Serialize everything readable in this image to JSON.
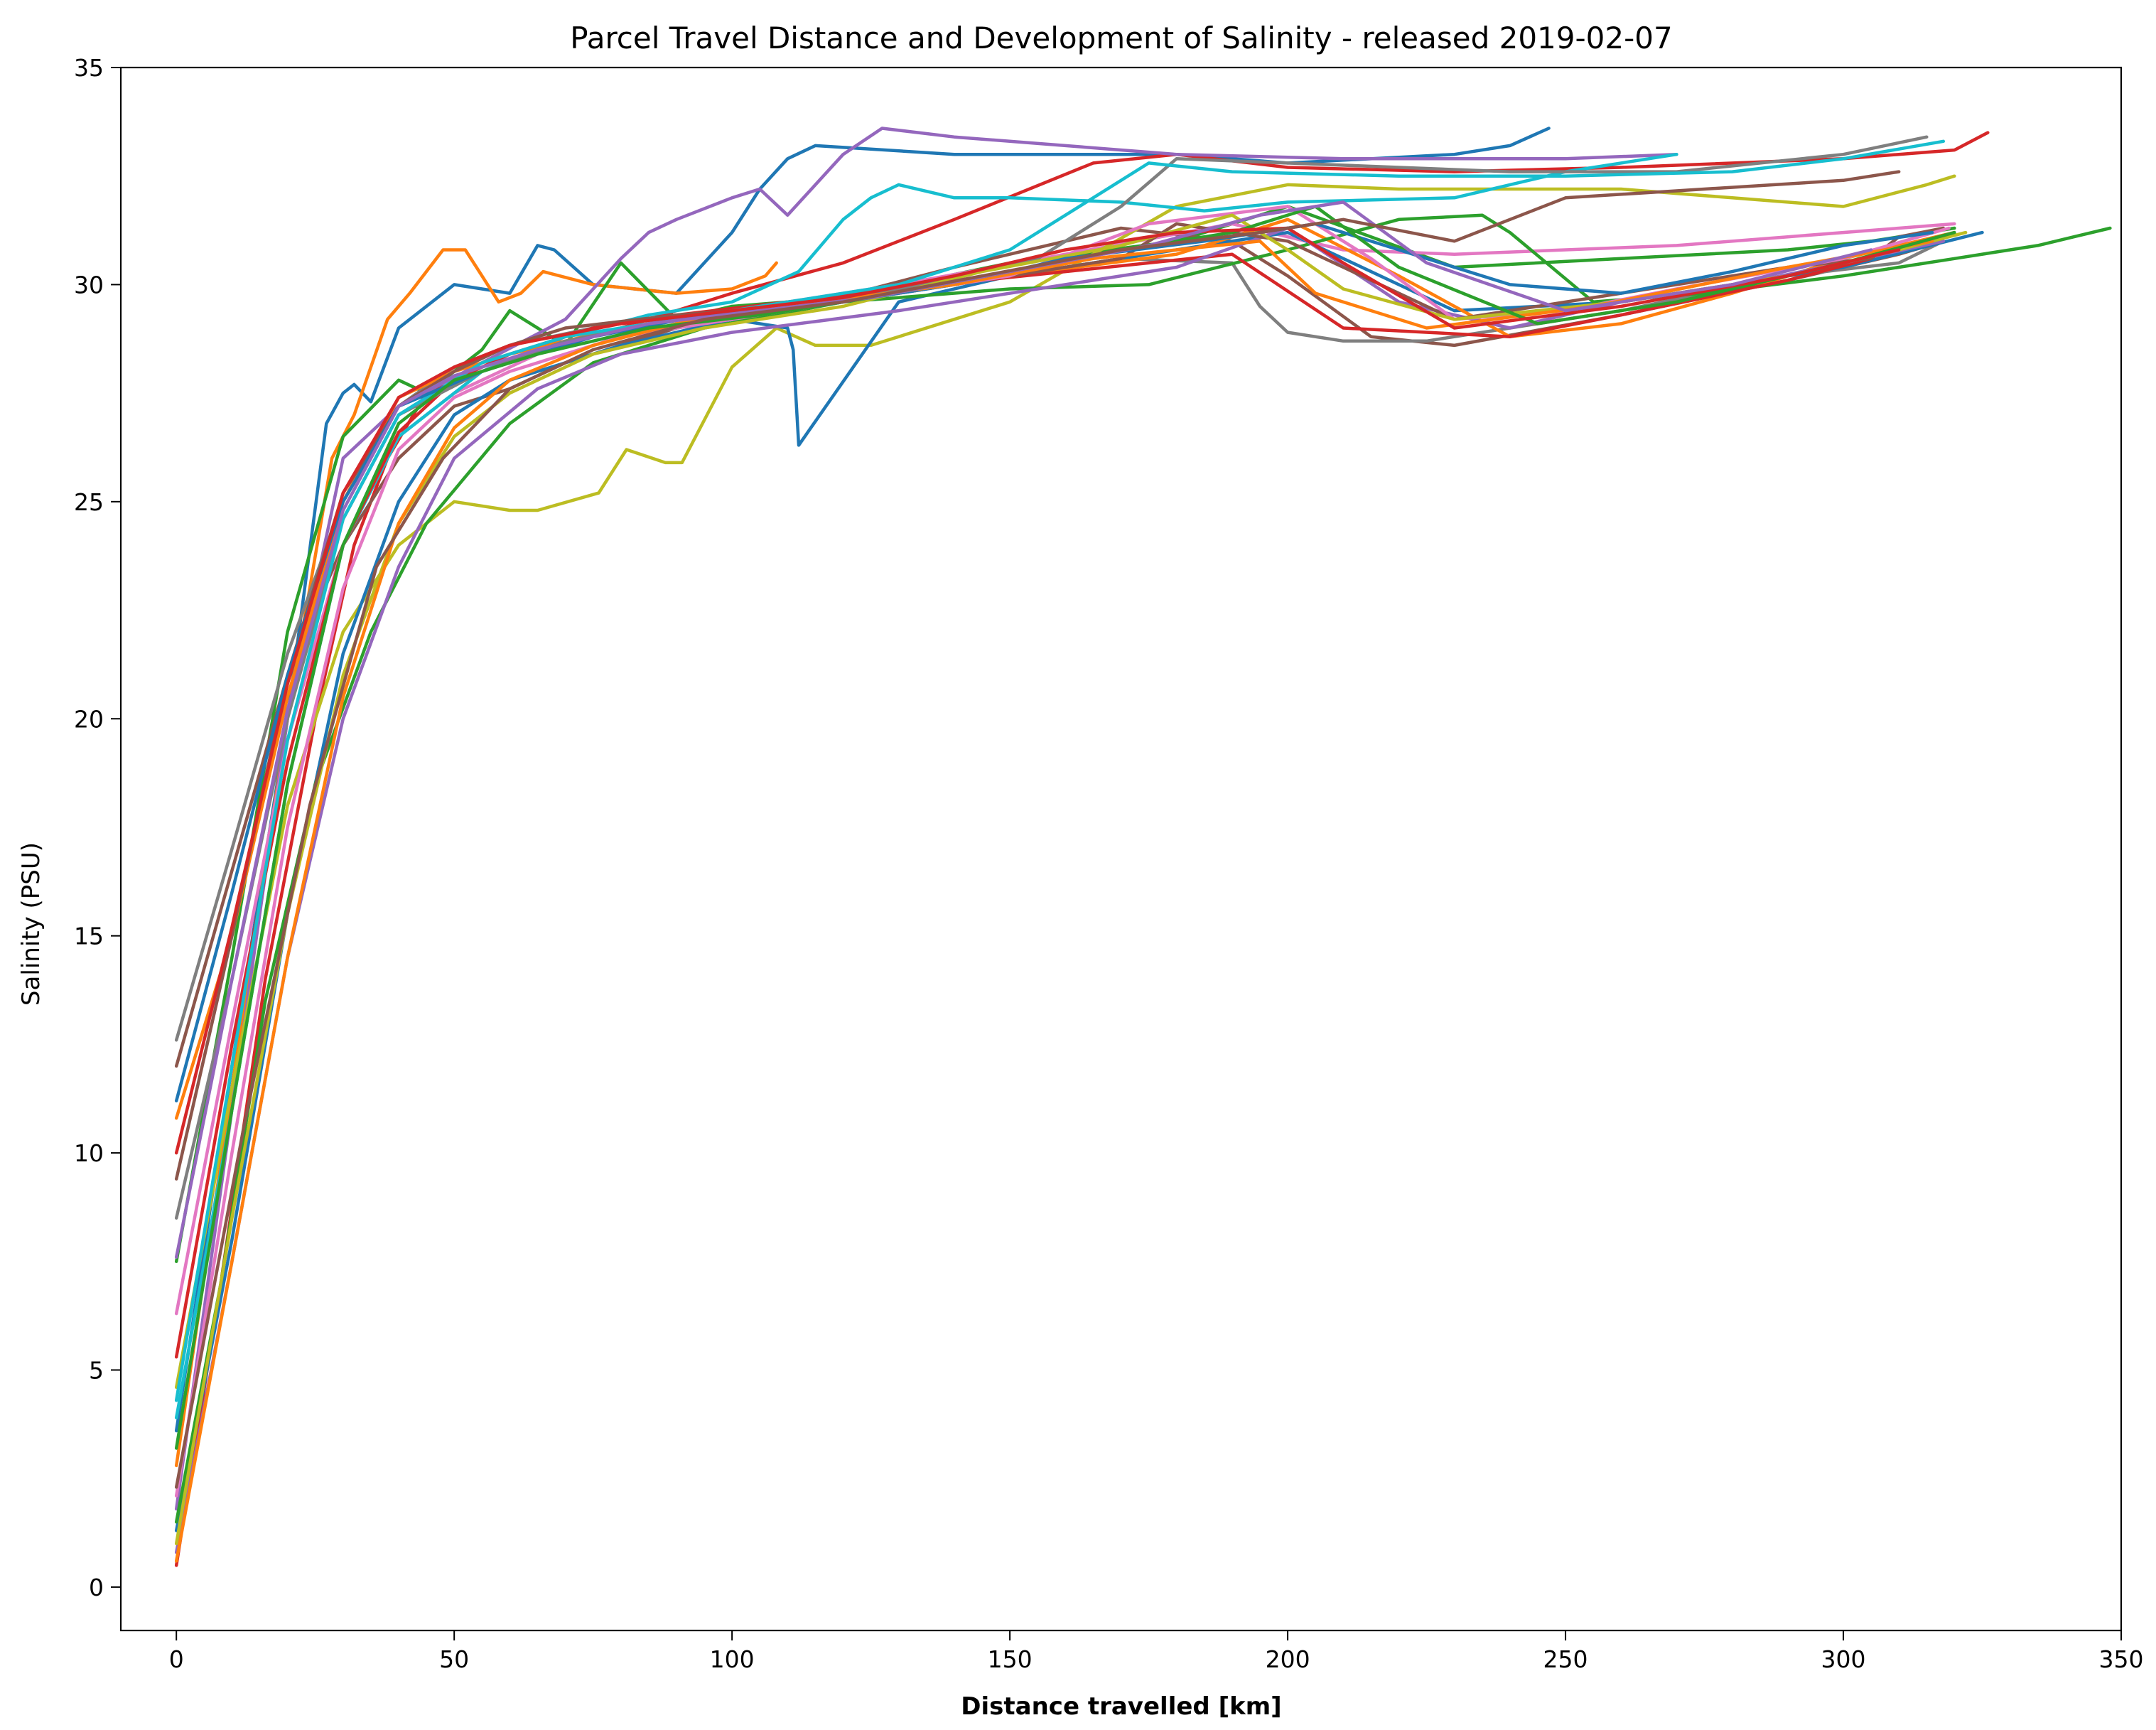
{
  "chart_data": {
    "type": "line",
    "title": "Parcel Travel Distance and Development of Salinity - released 2019-02-07",
    "xlabel": "Distance travelled [km]",
    "ylabel": "Salinity (PSU)",
    "xlim": [
      -10,
      350
    ],
    "ylim": [
      -1,
      35
    ],
    "xticks": [
      0,
      50,
      100,
      150,
      200,
      250,
      300,
      350
    ],
    "yticks": [
      0,
      5,
      10,
      15,
      20,
      25,
      30,
      35
    ],
    "grid": false,
    "legend": "none",
    "palette": [
      "#1f77b4",
      "#ff7f0e",
      "#2ca02c",
      "#d62728",
      "#9467bd",
      "#8c564b",
      "#e377c2",
      "#7f7f7f",
      "#bcbd22",
      "#17becf"
    ],
    "series": [
      {
        "x": [
          0,
          10,
          20,
          27,
          30,
          32,
          35,
          40,
          50,
          60,
          65,
          68,
          75,
          90,
          100,
          105,
          110,
          115,
          140,
          180,
          200,
          230,
          240,
          247
        ],
        "y": [
          3.6,
          12,
          20,
          26.8,
          27.5,
          27.7,
          27.3,
          29,
          30,
          29.8,
          30.9,
          30.8,
          30,
          29.8,
          31.2,
          32.2,
          32.9,
          33.2,
          33.0,
          33.0,
          32.8,
          33.0,
          33.2,
          33.6
        ]
      },
      {
        "x": [
          0,
          10,
          20,
          28,
          32,
          38,
          42,
          48,
          52,
          55,
          58,
          62,
          66,
          75,
          90,
          100,
          106,
          108
        ],
        "y": [
          2.8,
          11.5,
          20,
          26,
          27,
          29.2,
          29.8,
          30.8,
          30.8,
          30.2,
          29.6,
          29.8,
          30.3,
          30,
          29.8,
          29.9,
          30.2,
          30.5
        ]
      },
      {
        "x": [
          0,
          10,
          20,
          30,
          40,
          45,
          55,
          60,
          70,
          80,
          90,
          100,
          120,
          150,
          180,
          200,
          230,
          260,
          290,
          305,
          320
        ],
        "y": [
          7.5,
          14.5,
          22,
          26.5,
          27.8,
          27.5,
          28.5,
          29.4,
          28.6,
          30.5,
          29.2,
          29.5,
          29.7,
          30.5,
          31,
          31.8,
          30.4,
          30.6,
          30.8,
          31,
          31.3
        ]
      },
      {
        "x": [
          0,
          8,
          16,
          25,
          32,
          38,
          45,
          55,
          65,
          80,
          100,
          120,
          140,
          165,
          180,
          200,
          230,
          260,
          300,
          320,
          326
        ],
        "y": [
          0.5,
          7,
          14,
          20,
          24,
          26,
          27.5,
          28,
          28.5,
          29,
          29.8,
          30.5,
          31.5,
          32.8,
          33.0,
          32.7,
          32.6,
          32.7,
          32.9,
          33.1,
          33.5
        ]
      },
      {
        "x": [
          0,
          10,
          20,
          30,
          40,
          55,
          70,
          80,
          85,
          90,
          100,
          105,
          110,
          120,
          127,
          140,
          160,
          180,
          210,
          250,
          270
        ],
        "y": [
          1.8,
          11,
          20,
          26,
          27.2,
          28.2,
          29.2,
          30.6,
          31.2,
          31.5,
          32,
          32.2,
          31.6,
          33,
          33.6,
          33.4,
          33.2,
          33.0,
          32.9,
          32.9,
          33.0
        ]
      },
      {
        "x": [
          0,
          10,
          20,
          30,
          40,
          50,
          60,
          70,
          90,
          110,
          140,
          170,
          190,
          200,
          215,
          230,
          260,
          290,
          310,
          318
        ],
        "y": [
          12,
          16.5,
          21,
          24,
          26,
          27.2,
          27.6,
          28.2,
          29,
          29.4,
          30.4,
          31.3,
          31.0,
          30.2,
          28.8,
          28.6,
          29.3,
          30.1,
          30.7,
          31.0
        ]
      },
      {
        "x": [
          0,
          10,
          20,
          30,
          40,
          50,
          65,
          80,
          100,
          130,
          160,
          190,
          210,
          230,
          250,
          270,
          290,
          310,
          320
        ],
        "y": [
          6.3,
          13,
          19.5,
          24,
          26.5,
          27.5,
          28.4,
          29,
          29.4,
          30,
          30.7,
          31.4,
          30.8,
          30.7,
          30.8,
          30.9,
          31.1,
          31.3,
          31.4
        ]
      },
      {
        "x": [
          0,
          10,
          20,
          30,
          40,
          50,
          60,
          75,
          90,
          110,
          140,
          170,
          190,
          195,
          200,
          210,
          225,
          240,
          260,
          290,
          310,
          318
        ],
        "y": [
          12.6,
          17,
          21.5,
          25,
          27.2,
          28.1,
          28.6,
          29.0,
          29.3,
          29.4,
          30.0,
          30.6,
          30.5,
          29.5,
          28.9,
          28.7,
          28.7,
          29.0,
          29.4,
          30.2,
          30.5,
          31.0
        ]
      },
      {
        "x": [
          0,
          10,
          20,
          30,
          40,
          50,
          60,
          65,
          76,
          81,
          88,
          91,
          100,
          108,
          115,
          125,
          150,
          180,
          200,
          220,
          260,
          280,
          300,
          315,
          320
        ],
        "y": [
          4.6,
          11.5,
          18,
          22,
          24,
          25,
          24.8,
          24.8,
          25.2,
          26.2,
          25.9,
          25.9,
          28.1,
          29,
          28.6,
          28.6,
          29.6,
          31.8,
          32.3,
          32.2,
          32.2,
          32.0,
          31.8,
          32.3,
          32.5
        ]
      },
      {
        "x": [
          0,
          10,
          20,
          30,
          40,
          55,
          70,
          85,
          100,
          112,
          120,
          125,
          130,
          140,
          150,
          170,
          185,
          200,
          230,
          250,
          270
        ],
        "y": [
          3.9,
          11,
          18.5,
          24,
          26.5,
          28,
          28.8,
          29.3,
          29.6,
          30.3,
          31.5,
          32.0,
          32.3,
          32.0,
          32.0,
          31.9,
          31.7,
          31.9,
          32.0,
          32.6,
          33.0
        ]
      },
      {
        "x": [
          0,
          10,
          20,
          30,
          40,
          50,
          60,
          80,
          100,
          110,
          111,
          112,
          130,
          150,
          180,
          200,
          230,
          260,
          300,
          325
        ],
        "y": [
          1.3,
          8,
          15.5,
          21.5,
          25,
          27,
          27.8,
          28.6,
          29.2,
          29.0,
          28.5,
          26.3,
          29.6,
          30.2,
          30.8,
          31.2,
          29.4,
          29.6,
          30.4,
          31.2
        ]
      },
      {
        "x": [
          0,
          10,
          20,
          30,
          40,
          50,
          60,
          80,
          100,
          120,
          150,
          180,
          200,
          220,
          240,
          260,
          280,
          300,
          320
        ],
        "y": [
          10.8,
          15,
          20.5,
          25,
          27.4,
          28,
          28.4,
          29.0,
          29.4,
          29.6,
          30.2,
          30.7,
          31.5,
          30.2,
          28.8,
          29.1,
          29.8,
          30.6,
          31.2
        ]
      },
      {
        "x": [
          0,
          8,
          16,
          25,
          35,
          45,
          60,
          75,
          95,
          120,
          150,
          175,
          200,
          220,
          235,
          240,
          255,
          275,
          300,
          320,
          335,
          348
        ],
        "y": [
          1.5,
          7,
          13.5,
          18.5,
          22,
          24.5,
          26.8,
          28.2,
          29.0,
          29.6,
          29.9,
          30.0,
          30.8,
          31.5,
          31.6,
          31.2,
          29.6,
          29.8,
          30.2,
          30.6,
          30.9,
          31.3
        ]
      },
      {
        "x": [
          0,
          10,
          20,
          30,
          40,
          50,
          60,
          75,
          90,
          110,
          130,
          160,
          190,
          210,
          240,
          260,
          290,
          305
        ],
        "y": [
          5.3,
          12.5,
          19,
          24,
          26.6,
          27.8,
          28.4,
          29.0,
          29.3,
          29.6,
          29.9,
          30.3,
          30.7,
          29.0,
          28.8,
          29.3,
          30.1,
          30.6
        ]
      },
      {
        "x": [
          0,
          10,
          20,
          30,
          40,
          50,
          65,
          80,
          100,
          130,
          160,
          180,
          200,
          220,
          240,
          260,
          285,
          300,
          318
        ],
        "y": [
          0.8,
          7.5,
          14.5,
          20,
          23.5,
          26,
          27.6,
          28.4,
          28.9,
          29.4,
          30.0,
          30.4,
          31.3,
          29.6,
          29.0,
          29.6,
          30.1,
          30.5,
          31.0
        ]
      },
      {
        "x": [
          0,
          10,
          20,
          30,
          40,
          50,
          60,
          70,
          90,
          110,
          140,
          170,
          180,
          200,
          230,
          260,
          290,
          305,
          310,
          318
        ],
        "y": [
          9.4,
          15,
          21,
          25.2,
          27.2,
          28,
          28.6,
          29.0,
          29.3,
          29.5,
          30.0,
          30.6,
          31.4,
          31.0,
          29.2,
          29.8,
          30.4,
          30.6,
          31.1,
          31.3
        ]
      },
      {
        "x": [
          0,
          10,
          20,
          30,
          40,
          50,
          60,
          80,
          100,
          120,
          150,
          175,
          200,
          215,
          230,
          250,
          270,
          300,
          319
        ],
        "y": [
          2.1,
          10,
          17.5,
          23,
          26.2,
          27.4,
          28.0,
          28.8,
          29.2,
          29.6,
          30.2,
          31.4,
          31.8,
          30.6,
          29.2,
          29.4,
          29.9,
          30.6,
          31.3
        ]
      },
      {
        "x": [
          0,
          10,
          20,
          30,
          40,
          55,
          70,
          90,
          110,
          130,
          155,
          170,
          180,
          200,
          220,
          240,
          270,
          300,
          315
        ],
        "y": [
          8.5,
          14,
          20,
          24.6,
          27.0,
          28.0,
          28.7,
          29.2,
          29.5,
          29.9,
          30.6,
          31.8,
          32.9,
          32.8,
          32.7,
          32.6,
          32.6,
          33.0,
          33.4
        ]
      },
      {
        "x": [
          0,
          10,
          20,
          30,
          40,
          50,
          60,
          75,
          95,
          120,
          145,
          170,
          190,
          200,
          210,
          230,
          260,
          290,
          310,
          322
        ],
        "y": [
          1.0,
          8.5,
          15.5,
          21,
          24.5,
          26.5,
          27.5,
          28.4,
          29.0,
          29.5,
          30.3,
          30.9,
          31.6,
          30.8,
          29.9,
          29.2,
          29.6,
          30.2,
          30.8,
          31.2
        ]
      },
      {
        "x": [
          0,
          10,
          20,
          30,
          40,
          55,
          70,
          90,
          110,
          130,
          150,
          165,
          175,
          190,
          220,
          250,
          280,
          300,
          318
        ],
        "y": [
          4.3,
          12,
          19.5,
          24.6,
          27.0,
          28.2,
          28.8,
          29.2,
          29.6,
          30.0,
          30.8,
          32.0,
          32.8,
          32.6,
          32.5,
          32.5,
          32.6,
          32.9,
          33.3
        ]
      },
      {
        "x": [
          0,
          10,
          20,
          30,
          40,
          55,
          75,
          95,
          115,
          140,
          160,
          185,
          205,
          220,
          240,
          260,
          280,
          300,
          316
        ],
        "y": [
          11.2,
          16,
          21,
          25,
          27.2,
          28.0,
          28.8,
          29.3,
          29.5,
          30.0,
          30.6,
          31.0,
          31.4,
          30.8,
          30.0,
          29.8,
          30.3,
          30.9,
          31.2
        ]
      },
      {
        "x": [
          0,
          10,
          20,
          30,
          40,
          50,
          60,
          75,
          90,
          110,
          140,
          165,
          180,
          195,
          205,
          225,
          255,
          290,
          316
        ],
        "y": [
          0.6,
          7.5,
          14.5,
          20.5,
          24.5,
          26.7,
          27.8,
          28.6,
          29.1,
          29.5,
          30.0,
          30.6,
          30.8,
          31.0,
          29.8,
          29.0,
          29.5,
          30.4,
          31.0
        ]
      },
      {
        "x": [
          0,
          10,
          20,
          30,
          40,
          50,
          65,
          85,
          105,
          125,
          150,
          170,
          190,
          205,
          220,
          245,
          270,
          300,
          320
        ],
        "y": [
          3.2,
          11,
          18.5,
          24,
          26.8,
          27.8,
          28.4,
          29.0,
          29.3,
          29.7,
          30.3,
          30.8,
          31.2,
          31.8,
          30.4,
          29.1,
          29.6,
          30.5,
          31.2
        ]
      },
      {
        "x": [
          0,
          10,
          20,
          30,
          40,
          50,
          60,
          80,
          100,
          120,
          140,
          160,
          180,
          200,
          210,
          230,
          260,
          290,
          310
        ],
        "y": [
          10.0,
          15.2,
          20.8,
          25.2,
          27.4,
          28.1,
          28.6,
          29.1,
          29.4,
          29.7,
          30.2,
          30.8,
          31.2,
          31.3,
          30.5,
          29.0,
          29.5,
          30.2,
          30.8
        ]
      },
      {
        "x": [
          0,
          10,
          20,
          30,
          40,
          50,
          65,
          85,
          105,
          125,
          150,
          175,
          195,
          210,
          225,
          250,
          280,
          305
        ],
        "y": [
          7.6,
          14,
          20.2,
          24.8,
          27.2,
          27.9,
          28.5,
          29.1,
          29.4,
          29.7,
          30.3,
          30.9,
          31.6,
          31.9,
          30.5,
          29.4,
          30.0,
          30.8
        ]
      },
      {
        "x": [
          0,
          12,
          24,
          36,
          48,
          60,
          75,
          95,
          120,
          145,
          170,
          195,
          210,
          230,
          250,
          275,
          300,
          310
        ],
        "y": [
          2.3,
          10.5,
          18,
          23.5,
          26.0,
          27.6,
          28.5,
          29.2,
          29.6,
          30.2,
          30.8,
          31.2,
          31.5,
          31.0,
          32.0,
          32.2,
          32.4,
          32.6
        ]
      }
    ]
  }
}
